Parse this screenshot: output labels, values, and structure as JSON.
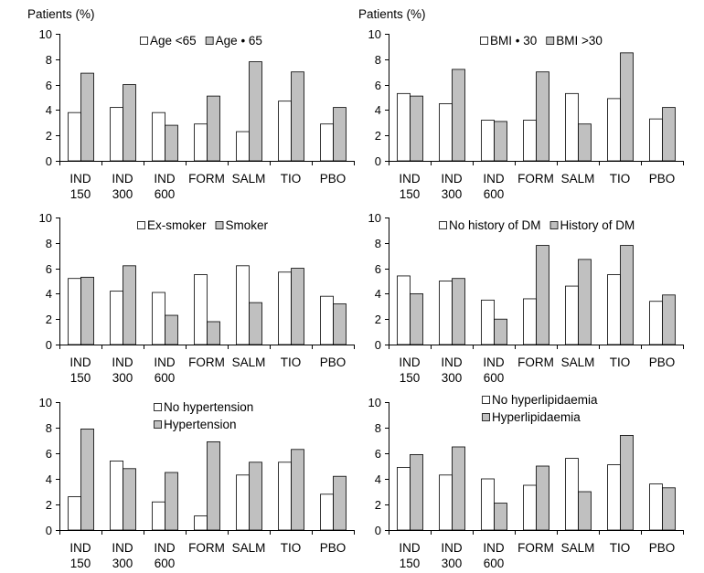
{
  "figure": {
    "colors": {
      "series_1": "#ffffff",
      "series_2": "#c0c0c0",
      "axis": "#000000"
    }
  },
  "chart_data": [
    {
      "type": "bar",
      "ylabel": "Patients (%)",
      "ylim": [
        0,
        10
      ],
      "yticks": [
        "0",
        "2",
        "4",
        "6",
        "8",
        "10"
      ],
      "categories": [
        "IND 150",
        "IND 300",
        "IND 600",
        "FORM",
        "SALM",
        "TIO",
        "PBO"
      ],
      "category_lines": [
        [
          "IND",
          "150"
        ],
        [
          "IND",
          "300"
        ],
        [
          "IND",
          "600"
        ],
        [
          "FORM"
        ],
        [
          "SALM"
        ],
        [
          "TIO"
        ],
        [
          "PBO"
        ]
      ],
      "legend_layout": "row",
      "series": [
        {
          "name": "Age <65",
          "values": [
            3.8,
            4.2,
            3.8,
            2.9,
            2.3,
            4.7,
            2.9
          ]
        },
        {
          "name": "Age • 65",
          "values": [
            6.9,
            6.0,
            2.8,
            5.1,
            7.8,
            7.0,
            4.2
          ]
        }
      ]
    },
    {
      "type": "bar",
      "ylabel": "Patients (%)",
      "ylim": [
        0,
        10
      ],
      "yticks": [
        "0",
        "2",
        "4",
        "6",
        "8",
        "10"
      ],
      "categories": [
        "IND 150",
        "IND 300",
        "IND 600",
        "FORM",
        "SALM",
        "TIO",
        "PBO"
      ],
      "category_lines": [
        [
          "IND",
          "150"
        ],
        [
          "IND",
          "300"
        ],
        [
          "IND",
          "600"
        ],
        [
          "FORM"
        ],
        [
          "SALM"
        ],
        [
          "TIO"
        ],
        [
          "PBO"
        ]
      ],
      "legend_layout": "row",
      "series": [
        {
          "name": "BMI • 30",
          "values": [
            5.3,
            4.5,
            3.2,
            3.2,
            5.3,
            4.9,
            3.3
          ]
        },
        {
          "name": "BMI >30",
          "values": [
            5.1,
            7.2,
            3.1,
            7.0,
            2.9,
            8.5,
            4.2
          ]
        }
      ]
    },
    {
      "type": "bar",
      "ylabel": "",
      "ylim": [
        0,
        10
      ],
      "yticks": [
        "0",
        "2",
        "4",
        "6",
        "8",
        "10"
      ],
      "categories": [
        "IND 150",
        "IND 300",
        "IND 600",
        "FORM",
        "SALM",
        "TIO",
        "PBO"
      ],
      "category_lines": [
        [
          "IND",
          "150"
        ],
        [
          "IND",
          "300"
        ],
        [
          "IND",
          "600"
        ],
        [
          "FORM"
        ],
        [
          "SALM"
        ],
        [
          "TIO"
        ],
        [
          "PBO"
        ]
      ],
      "legend_layout": "row",
      "series": [
        {
          "name": "Ex-smoker",
          "values": [
            5.2,
            4.2,
            4.1,
            5.5,
            6.2,
            5.7,
            3.8
          ]
        },
        {
          "name": "Smoker",
          "values": [
            5.3,
            6.2,
            2.3,
            1.8,
            3.3,
            6.0,
            3.2
          ]
        }
      ]
    },
    {
      "type": "bar",
      "ylabel": "",
      "ylim": [
        0,
        10
      ],
      "yticks": [
        "0",
        "2",
        "4",
        "6",
        "8",
        "10"
      ],
      "categories": [
        "IND 150",
        "IND 300",
        "IND 600",
        "FORM",
        "SALM",
        "TIO",
        "PBO"
      ],
      "category_lines": [
        [
          "IND",
          "150"
        ],
        [
          "IND",
          "300"
        ],
        [
          "IND",
          "600"
        ],
        [
          "FORM"
        ],
        [
          "SALM"
        ],
        [
          "TIO"
        ],
        [
          "PBO"
        ]
      ],
      "legend_layout": "row",
      "series": [
        {
          "name": "No history of DM",
          "values": [
            5.4,
            5.0,
            3.5,
            3.6,
            4.6,
            5.5,
            3.4
          ]
        },
        {
          "name": "History of DM",
          "values": [
            4.0,
            5.2,
            2.0,
            7.8,
            6.7,
            7.8,
            3.9
          ]
        }
      ]
    },
    {
      "type": "bar",
      "ylabel": "",
      "ylim": [
        0,
        10
      ],
      "yticks": [
        "0",
        "2",
        "4",
        "6",
        "8",
        "10"
      ],
      "categories": [
        "IND 150",
        "IND 300",
        "IND 600",
        "FORM",
        "SALM",
        "TIO",
        "PBO"
      ],
      "category_lines": [
        [
          "IND",
          "150"
        ],
        [
          "IND",
          "300"
        ],
        [
          "IND",
          "600"
        ],
        [
          "FORM"
        ],
        [
          "SALM"
        ],
        [
          "TIO"
        ],
        [
          "PBO"
        ]
      ],
      "legend_layout": "column",
      "series": [
        {
          "name": "No hypertension",
          "values": [
            2.6,
            5.4,
            2.2,
            1.1,
            4.3,
            5.3,
            2.8
          ]
        },
        {
          "name": "Hypertension",
          "values": [
            7.9,
            4.8,
            4.5,
            6.9,
            5.3,
            6.3,
            4.2
          ]
        }
      ]
    },
    {
      "type": "bar",
      "ylabel": "",
      "ylim": [
        0,
        10
      ],
      "yticks": [
        "0",
        "2",
        "4",
        "6",
        "8",
        "10"
      ],
      "categories": [
        "IND 150",
        "IND 300",
        "IND 600",
        "FORM",
        "SALM",
        "TIO",
        "PBO"
      ],
      "category_lines": [
        [
          "IND",
          "150"
        ],
        [
          "IND",
          "300"
        ],
        [
          "IND",
          "600"
        ],
        [
          "FORM"
        ],
        [
          "SALM"
        ],
        [
          "TIO"
        ],
        [
          "PBO"
        ]
      ],
      "legend_layout": "column",
      "series": [
        {
          "name": "No hyperlipidaemia",
          "values": [
            4.9,
            4.3,
            4.0,
            3.5,
            5.6,
            5.1,
            3.6
          ]
        },
        {
          "name": "Hyperlipidaemia",
          "values": [
            5.9,
            6.5,
            2.1,
            5.0,
            3.0,
            7.4,
            3.3
          ]
        }
      ]
    }
  ]
}
